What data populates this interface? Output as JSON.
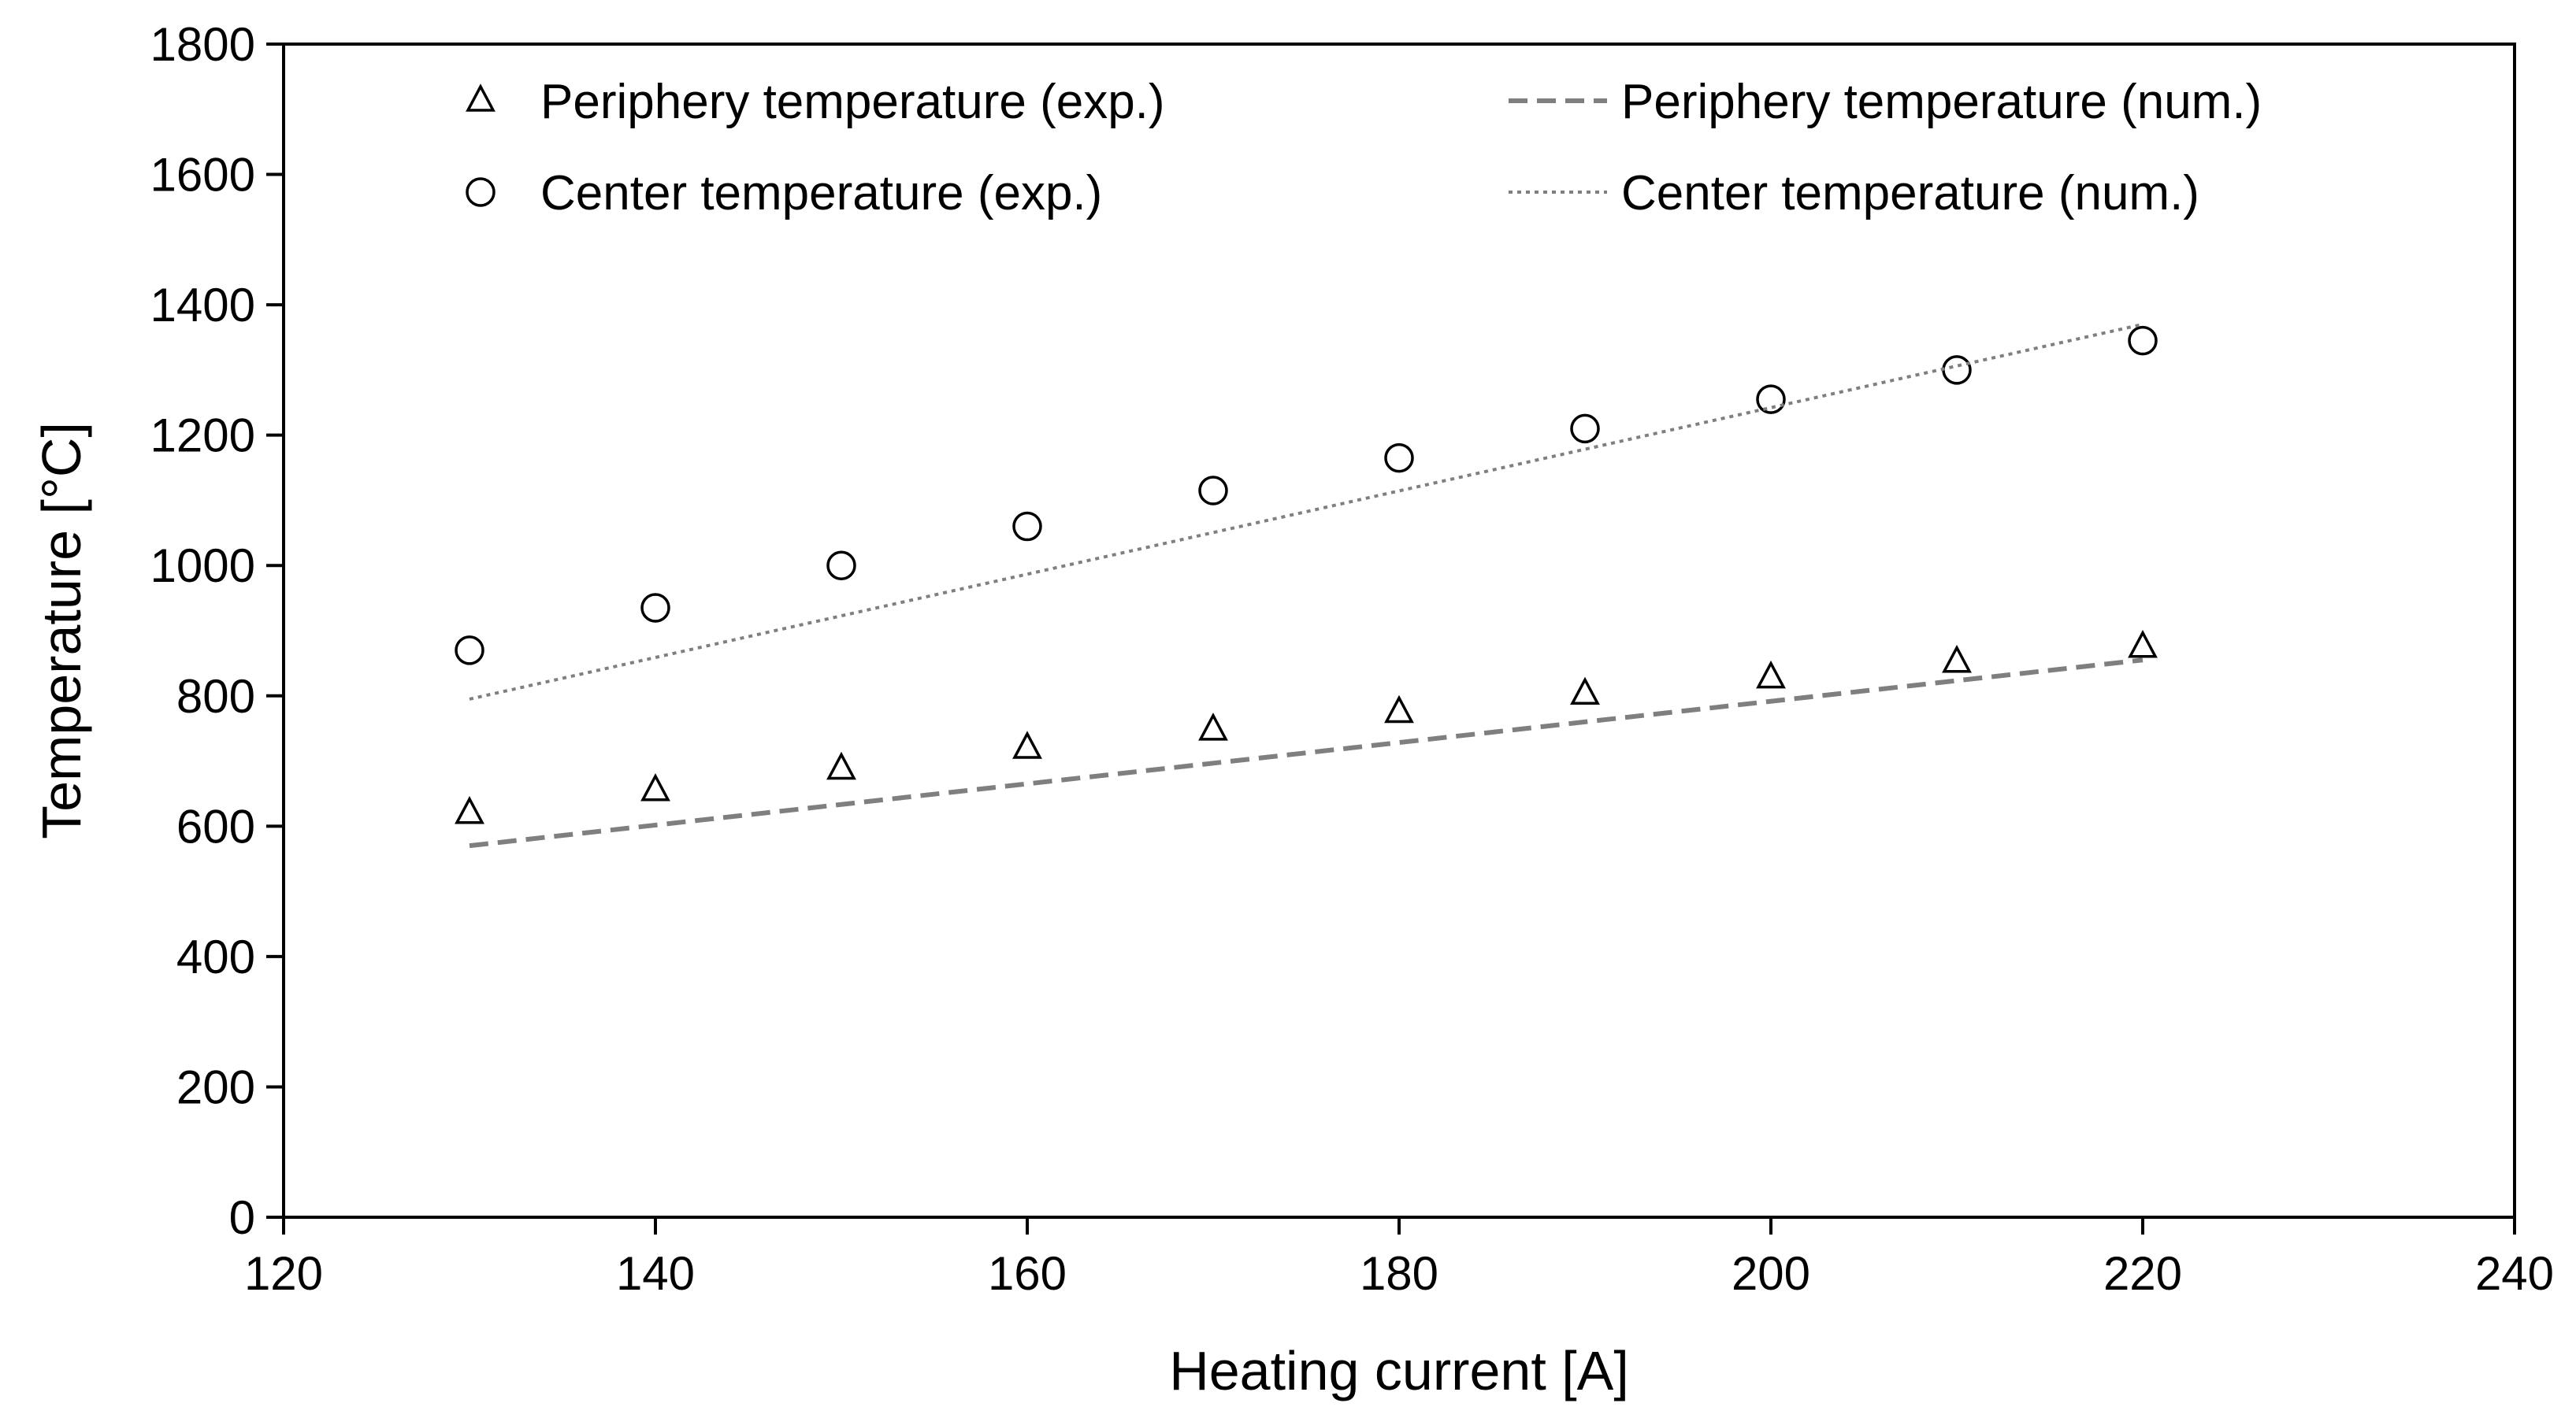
{
  "chart_data": {
    "type": "scatter",
    "title": "",
    "xlabel": "Heating current [A]",
    "ylabel": "Temperature [°C]",
    "xlim": [
      120,
      240
    ],
    "ylim": [
      0,
      1800
    ],
    "xticks": [
      120,
      140,
      160,
      180,
      200,
      220,
      240
    ],
    "yticks": [
      0,
      200,
      400,
      600,
      800,
      1000,
      1200,
      1400,
      1600,
      1800
    ],
    "grid": false,
    "legend_position": "top",
    "series": [
      {
        "name": "Periphery temperature (exp.)",
        "kind": "markers",
        "marker": "triangle",
        "color": "#000000",
        "x": [
          130,
          140,
          150,
          160,
          170,
          180,
          190,
          200,
          210,
          220
        ],
        "y": [
          620,
          655,
          688,
          720,
          748,
          775,
          803,
          828,
          852,
          875
        ]
      },
      {
        "name": "Center temperature (exp.)",
        "kind": "markers",
        "marker": "circle",
        "color": "#000000",
        "x": [
          130,
          140,
          150,
          160,
          170,
          180,
          190,
          200,
          210,
          220
        ],
        "y": [
          870,
          935,
          1000,
          1060,
          1115,
          1165,
          1210,
          1255,
          1300,
          1345
        ]
      },
      {
        "name": "Periphery temperature (num.)",
        "kind": "line",
        "dash": "dashed",
        "color": "#7f7f7f",
        "x": [
          130,
          220
        ],
        "y": [
          570,
          855
        ]
      },
      {
        "name": "Center temperature (num.)",
        "kind": "line",
        "dash": "dotted",
        "color": "#7f7f7f",
        "x": [
          130,
          220
        ],
        "y": [
          795,
          1370
        ]
      }
    ]
  }
}
